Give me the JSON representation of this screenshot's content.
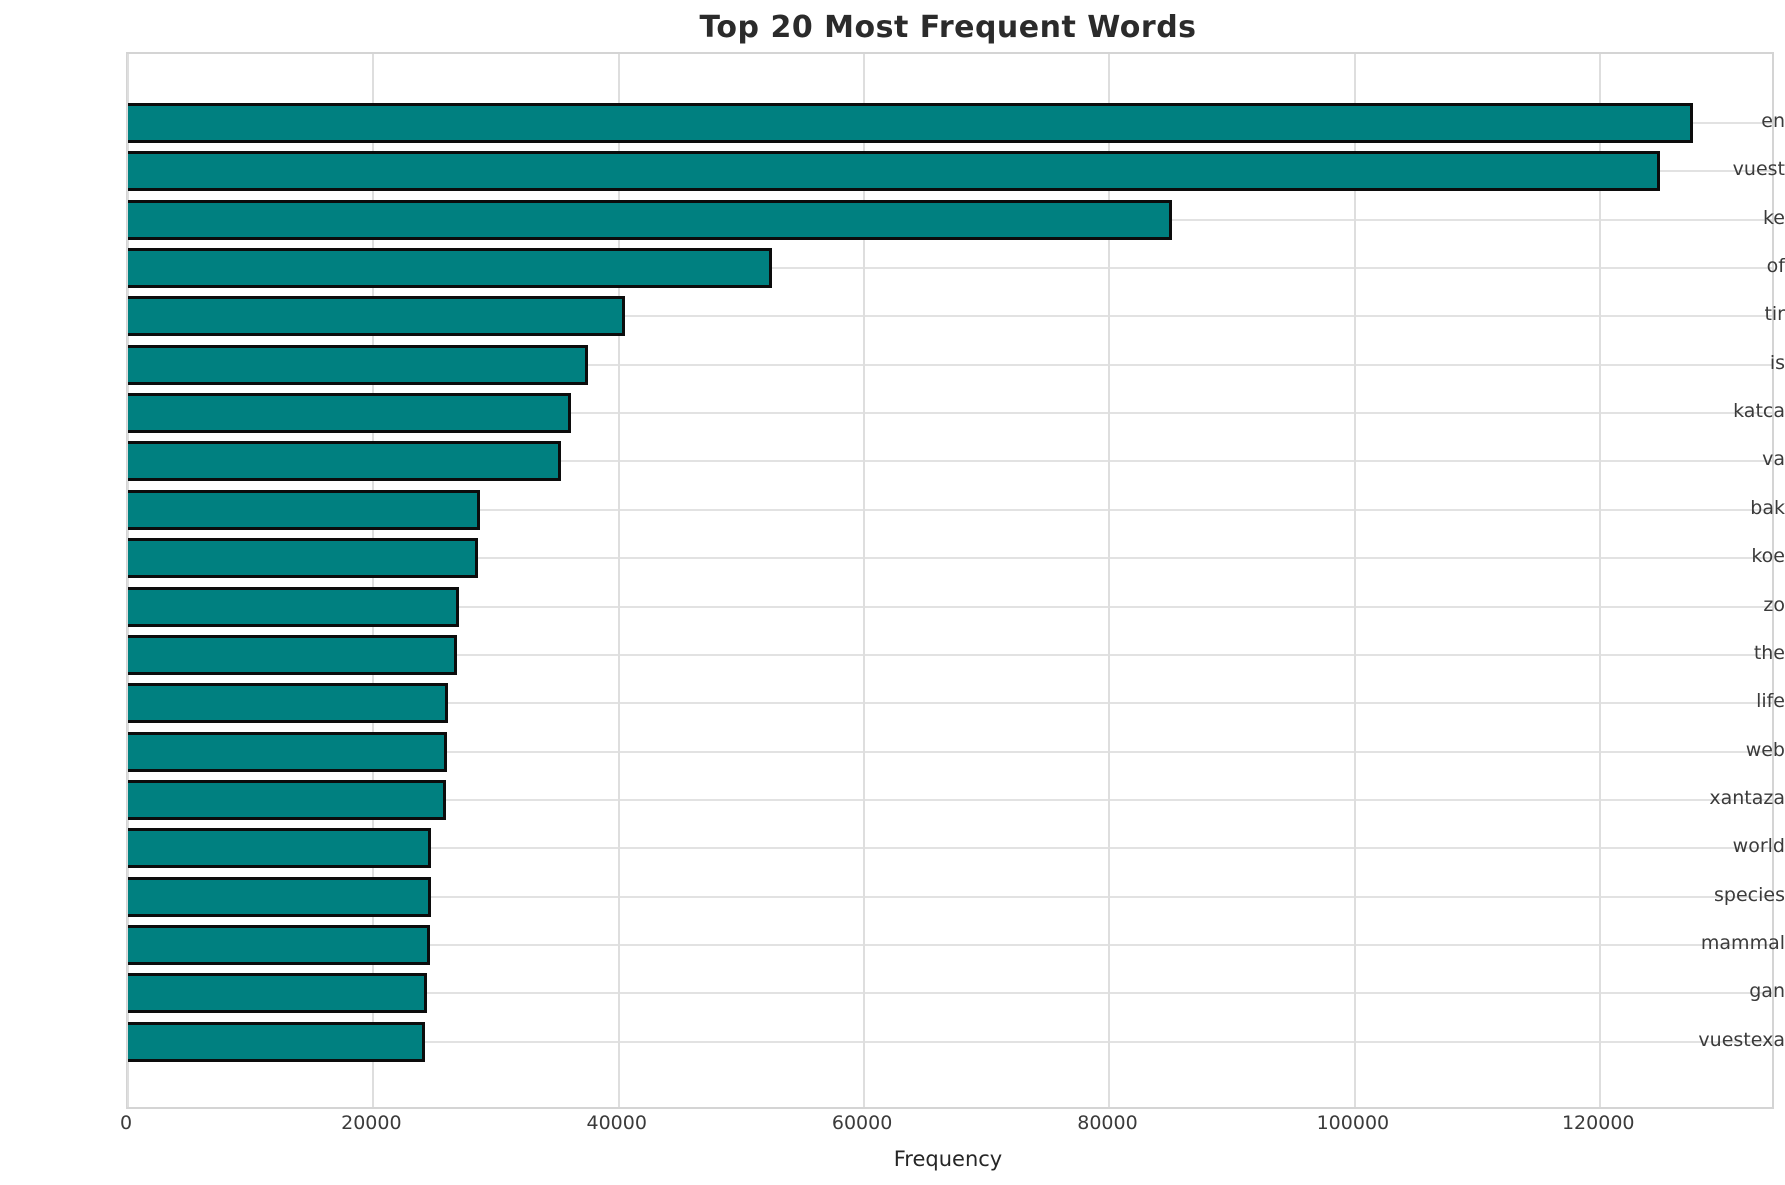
{
  "title": "Top 20 Most Frequent Words",
  "chart_data": {
    "type": "bar",
    "orientation": "horizontal",
    "title": "Top 20 Most Frequent Words",
    "xlabel": "Frequency",
    "ylabel": "",
    "categories": [
      "en",
      "vuest",
      "ke",
      "of",
      "tir",
      "is",
      "katca",
      "va",
      "bak",
      "koe",
      "zo",
      "the",
      "life",
      "web",
      "xantaza",
      "world",
      "species",
      "mammal",
      "gan",
      "vuestexa"
    ],
    "values": [
      127600,
      124900,
      85100,
      52500,
      40500,
      37500,
      36100,
      35300,
      28700,
      28550,
      27000,
      26800,
      26050,
      25980,
      25900,
      24700,
      24660,
      24620,
      24400,
      24200
    ],
    "xticks": [
      0,
      20000,
      40000,
      60000,
      80000,
      100000,
      120000
    ],
    "xtick_labels": [
      "0",
      "20000",
      "40000",
      "60000",
      "80000",
      "100000",
      "120000"
    ],
    "xlim": [
      0,
      134000
    ],
    "grid": true,
    "legend_position": "none",
    "colors": {
      "bar_fill": "#008080",
      "bar_edge": "#0c0c0c",
      "grid_line": "#dedede",
      "spine": "#d4d4d4",
      "tick_text": "#3b3b3b",
      "title_text": "#2b2b2b",
      "axis_label_text": "#262626",
      "background": "#ffffff"
    }
  }
}
